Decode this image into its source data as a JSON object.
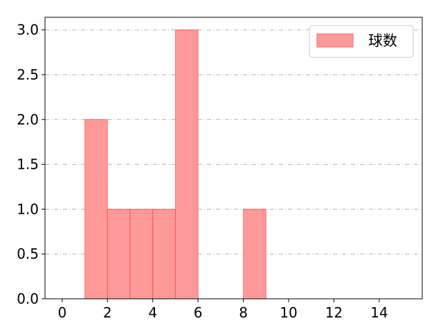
{
  "chart_data": {
    "type": "bar",
    "subtype": "histogram",
    "bins": [
      [
        1,
        2
      ],
      [
        2,
        3
      ],
      [
        3,
        4
      ],
      [
        4,
        5
      ],
      [
        5,
        6
      ],
      [
        8,
        9
      ]
    ],
    "values": [
      2,
      1,
      1,
      1,
      3,
      1
    ],
    "series": [
      {
        "name": "球数",
        "color": "#ff9999",
        "edge_color": "#ff3333"
      }
    ],
    "xlim": [
      -0.76,
      15.9
    ],
    "ylim": [
      0,
      3.14
    ],
    "xticks": [
      0,
      2,
      4,
      6,
      8,
      10,
      12,
      14
    ],
    "yticks": [
      0.0,
      0.5,
      1.0,
      1.5,
      2.0,
      2.5,
      3.0
    ],
    "ytick_labels": [
      "0.0",
      "0.5",
      "1.0",
      "1.5",
      "2.0",
      "2.5",
      "3.0"
    ],
    "grid": {
      "axis": "y",
      "style": "dash-dot",
      "color": "#b0b0b0"
    },
    "legend": {
      "placement": "top-right",
      "entries": [
        "球数"
      ]
    },
    "title": "",
    "xlabel": "",
    "ylabel": ""
  }
}
